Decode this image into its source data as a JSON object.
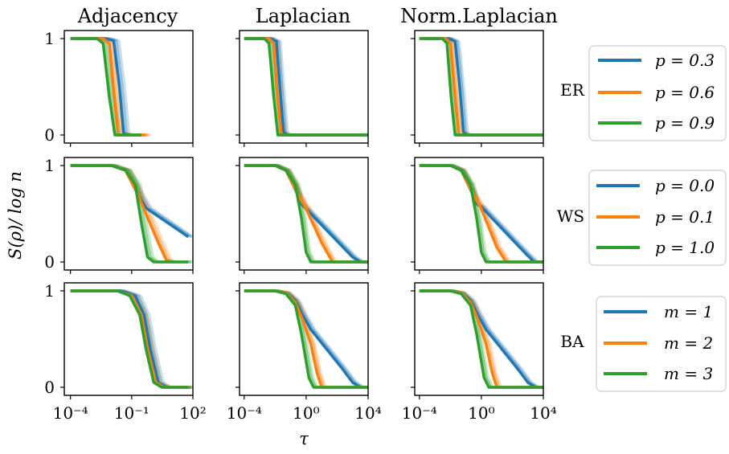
{
  "chart_data": {
    "type": "line",
    "column_titles": [
      "Adjacency",
      "Laplacian",
      "Norm.Laplacian"
    ],
    "row_labels": [
      "ER",
      "WS",
      "BA"
    ],
    "ylabel": "S(ρ)/ log n",
    "xlabel": "τ",
    "xscale": "log",
    "yticks": [
      "0",
      "1"
    ],
    "colors": {
      "c0": "#1f77b4",
      "c1": "#ff7f0e",
      "c2": "#2ca02c"
    },
    "columns_x": [
      {
        "xlim": [
          5e-05,
          100
        ],
        "ticks": [
          "10⁻⁴",
          "10⁻¹",
          "10²"
        ],
        "tick_values": [
          0.0001,
          0.1,
          100
        ]
      },
      {
        "xlim": [
          5e-05,
          10000
        ],
        "ticks": [
          "10⁻⁴",
          "10⁰",
          "10⁴"
        ],
        "tick_values": [
          0.0001,
          1,
          10000
        ]
      },
      {
        "xlim": [
          5e-05,
          10000
        ],
        "ticks": [
          "10⁻⁴",
          "10⁰",
          "10⁴"
        ],
        "tick_values": [
          0.0001,
          1,
          10000
        ]
      }
    ],
    "legends": [
      {
        "entries": [
          "p = 0.3",
          "p = 0.6",
          "p = 0.9"
        ]
      },
      {
        "entries": [
          "p = 0.0",
          "p = 0.1",
          "p = 1.0"
        ]
      },
      {
        "entries": [
          "m = 1",
          "m = 2",
          "m = 3"
        ]
      }
    ],
    "panels": [
      {
        "row": 0,
        "col": 0,
        "series": [
          {
            "color": "c0",
            "x": [
              0.0001,
              0.005,
              0.013,
              0.025,
              0.04,
              0.07
            ],
            "y": [
              1,
              1,
              0.98,
              0.5,
              0.02,
              0
            ]
          },
          {
            "color": "c1",
            "x": [
              0.0001,
              0.004,
              0.008,
              0.014,
              0.022,
              0.5
            ],
            "y": [
              1,
              1,
              0.95,
              0.4,
              0,
              0
            ]
          },
          {
            "color": "c2",
            "x": [
              0.0001,
              0.002,
              0.004,
              0.008,
              0.015,
              0.3
            ],
            "y": [
              1,
              1,
              0.95,
              0.4,
              0,
              0
            ]
          }
        ]
      },
      {
        "row": 0,
        "col": 1,
        "series": [
          {
            "color": "c0",
            "x": [
              0.0001,
              0.005,
              0.012,
              0.02,
              0.035,
              0.06,
              10000
            ],
            "y": [
              1,
              1,
              0.97,
              0.5,
              0.03,
              0,
              0
            ]
          },
          {
            "color": "c1",
            "x": [
              0.0001,
              0.004,
              0.008,
              0.014,
              0.025,
              10000
            ],
            "y": [
              1,
              1,
              0.95,
              0.4,
              0,
              0
            ]
          },
          {
            "color": "c2",
            "x": [
              0.0001,
              0.002,
              0.004,
              0.008,
              0.015,
              10000
            ],
            "y": [
              1,
              1,
              0.95,
              0.4,
              0,
              0
            ]
          }
        ]
      },
      {
        "row": 0,
        "col": 2,
        "series": [
          {
            "color": "c0",
            "x": [
              0.0001,
              0.008,
              0.02,
              0.04,
              0.07,
              0.12,
              10000
            ],
            "y": [
              1,
              1,
              0.97,
              0.5,
              0.03,
              0,
              0
            ]
          },
          {
            "color": "c1",
            "x": [
              0.0001,
              0.005,
              0.01,
              0.02,
              0.035,
              10000
            ],
            "y": [
              1,
              1,
              0.95,
              0.4,
              0,
              0
            ]
          },
          {
            "color": "c2",
            "x": [
              0.0001,
              0.003,
              0.006,
              0.011,
              0.02,
              10000
            ],
            "y": [
              1,
              1,
              0.95,
              0.4,
              0,
              0
            ]
          }
        ]
      },
      {
        "row": 1,
        "col": 0,
        "series": [
          {
            "color": "c0",
            "x": [
              0.0001,
              0.01,
              0.05,
              0.2,
              0.5,
              60
            ],
            "y": [
              1,
              1,
              0.95,
              0.7,
              0.56,
              0.26
            ]
          },
          {
            "color": "c1",
            "x": [
              0.0001,
              0.01,
              0.05,
              0.2,
              0.5,
              2,
              5,
              10
            ],
            "y": [
              1,
              1,
              0.95,
              0.7,
              0.5,
              0.2,
              0.02,
              0
            ]
          },
          {
            "color": "c2",
            "x": [
              0.0001,
              0.01,
              0.05,
              0.15,
              0.3,
              0.6,
              1.2,
              60
            ],
            "y": [
              1,
              1,
              0.95,
              0.8,
              0.4,
              0.05,
              0,
              0
            ]
          }
        ]
      },
      {
        "row": 1,
        "col": 1,
        "series": [
          {
            "color": "c0",
            "x": [
              0.0001,
              0.01,
              0.05,
              0.2,
              0.5,
              1,
              1000,
              3000,
              10000
            ],
            "y": [
              1,
              1,
              0.95,
              0.75,
              0.6,
              0.55,
              0.05,
              0,
              0
            ]
          },
          {
            "color": "c1",
            "x": [
              0.0001,
              0.01,
              0.05,
              0.3,
              1,
              10,
              50,
              10000
            ],
            "y": [
              1,
              1,
              0.95,
              0.7,
              0.55,
              0.2,
              0,
              0
            ]
          },
          {
            "color": "c2",
            "x": [
              0.0001,
              0.01,
              0.05,
              0.2,
              0.5,
              1,
              2,
              10000
            ],
            "y": [
              1,
              1,
              0.95,
              0.8,
              0.45,
              0.1,
              0,
              0
            ]
          }
        ]
      },
      {
        "row": 1,
        "col": 2,
        "series": [
          {
            "color": "c0",
            "x": [
              0.0001,
              0.01,
              0.05,
              0.2,
              0.5,
              1,
              800,
              2500,
              10000
            ],
            "y": [
              1,
              1,
              0.95,
              0.75,
              0.6,
              0.57,
              0.08,
              0,
              0
            ]
          },
          {
            "color": "c1",
            "x": [
              0.0001,
              0.01,
              0.05,
              0.3,
              1,
              10,
              40,
              10000
            ],
            "y": [
              1,
              1,
              0.95,
              0.7,
              0.55,
              0.15,
              0,
              0
            ]
          },
          {
            "color": "c2",
            "x": [
              0.0001,
              0.01,
              0.05,
              0.2,
              0.5,
              1,
              2,
              10000
            ],
            "y": [
              1,
              1,
              0.95,
              0.8,
              0.45,
              0.1,
              0,
              0
            ]
          }
        ]
      },
      {
        "row": 2,
        "col": 0,
        "series": [
          {
            "color": "c0",
            "x": [
              0.0001,
              0.03,
              0.15,
              0.4,
              0.8,
              2,
              5,
              60
            ],
            "y": [
              1,
              1,
              0.95,
              0.75,
              0.4,
              0.05,
              0,
              0
            ]
          },
          {
            "color": "c1",
            "x": [
              0.0001,
              0.02,
              0.1,
              0.3,
              0.6,
              1.5,
              4,
              60
            ],
            "y": [
              1,
              1,
              0.95,
              0.75,
              0.4,
              0.05,
              0,
              0
            ]
          },
          {
            "color": "c2",
            "x": [
              0.0001,
              0.02,
              0.08,
              0.25,
              0.5,
              1.2,
              3,
              60
            ],
            "y": [
              1,
              1,
              0.95,
              0.75,
              0.4,
              0.05,
              0,
              0
            ]
          }
        ]
      },
      {
        "row": 2,
        "col": 1,
        "series": [
          {
            "color": "c0",
            "x": [
              0.0001,
              0.01,
              0.05,
              0.2,
              0.6,
              2,
              20,
              200,
              1000,
              3000,
              10000
            ],
            "y": [
              1,
              1,
              0.98,
              0.9,
              0.75,
              0.6,
              0.4,
              0.2,
              0.05,
              0,
              0
            ]
          },
          {
            "color": "c1",
            "x": [
              0.0001,
              0.01,
              0.05,
              0.2,
              0.6,
              2,
              5,
              10,
              10000
            ],
            "y": [
              1,
              1,
              0.98,
              0.88,
              0.7,
              0.45,
              0.15,
              0,
              0
            ]
          },
          {
            "color": "c2",
            "x": [
              0.0001,
              0.01,
              0.05,
              0.2,
              0.5,
              1.5,
              3,
              10000
            ],
            "y": [
              1,
              1,
              0.97,
              0.85,
              0.55,
              0.1,
              0,
              0
            ]
          }
        ]
      },
      {
        "row": 2,
        "col": 2,
        "series": [
          {
            "color": "c0",
            "x": [
              0.0001,
              0.01,
              0.05,
              0.2,
              0.6,
              2,
              20,
              200,
              1000,
              3000,
              10000
            ],
            "y": [
              1,
              1,
              0.98,
              0.9,
              0.75,
              0.6,
              0.4,
              0.2,
              0.05,
              0,
              0
            ]
          },
          {
            "color": "c1",
            "x": [
              0.0001,
              0.01,
              0.05,
              0.2,
              0.6,
              2,
              5,
              10,
              10000
            ],
            "y": [
              1,
              1,
              0.98,
              0.88,
              0.7,
              0.45,
              0.15,
              0,
              0
            ]
          },
          {
            "color": "c2",
            "x": [
              0.0001,
              0.01,
              0.05,
              0.2,
              0.5,
              1.5,
              3,
              10000
            ],
            "y": [
              1,
              1,
              0.97,
              0.85,
              0.55,
              0.1,
              0,
              0
            ]
          }
        ]
      }
    ]
  }
}
